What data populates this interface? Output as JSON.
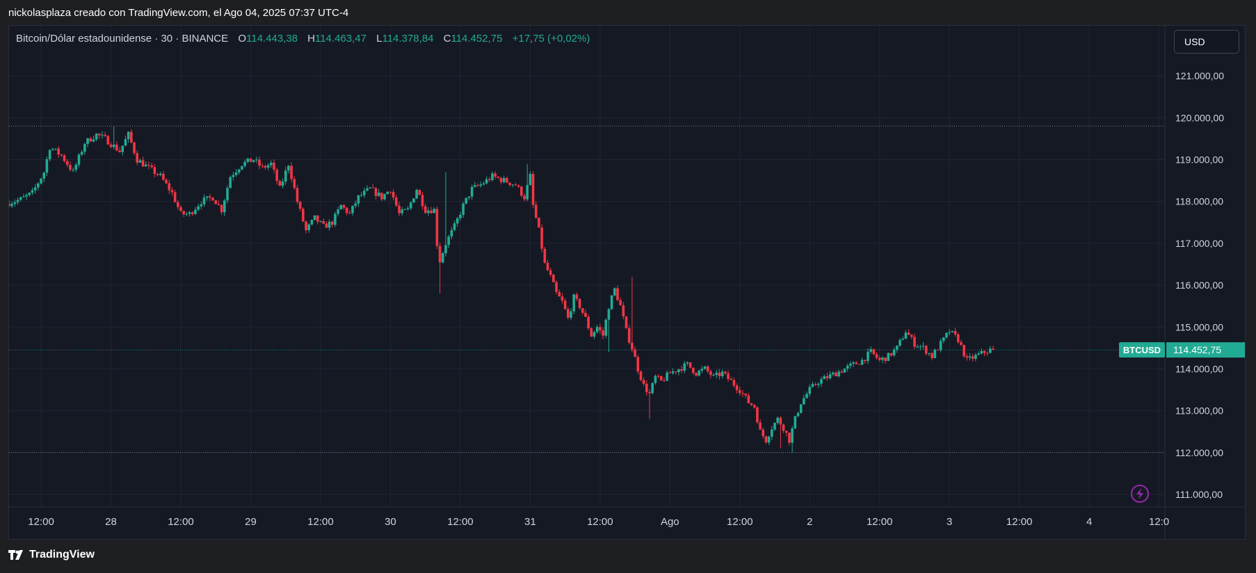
{
  "caption": "nickolasplaza creado con TradingView.com, el Ago 04, 2025 07:37 UTC-4",
  "legend": {
    "symbol": "Bitcoin/Dólar estadounidense · 30 · BINANCE",
    "o_label": "O",
    "o_value": "114.443,38",
    "h_label": "H",
    "h_value": "114.463,47",
    "l_label": "L",
    "l_value": "114.378,84",
    "c_label": "C",
    "c_value": "114.452,75",
    "change": "+17,75 (+0,02%)"
  },
  "currency": "USD",
  "footer": {
    "brand": "TradingView"
  },
  "colors": {
    "up": "#22ab94",
    "down": "#f23645",
    "background": "#151924",
    "grid": "#232632",
    "axis_text": "#d1d4dc",
    "lightning": "#9c27b0"
  },
  "icons": [
    "lightning-icon",
    "tradingview-logo-icon"
  ],
  "chart_data": {
    "type": "candlestick",
    "symbol_tag": "BTCUSD",
    "last_price_label": "114.452,75",
    "last_price": 114452.75,
    "ylim": [
      110700,
      122200
    ],
    "y_ticks": [
      {
        "value": 121000,
        "label": "121.000,00"
      },
      {
        "value": 120000,
        "label": "120.000,00"
      },
      {
        "value": 119000,
        "label": "119.000,00"
      },
      {
        "value": 118000,
        "label": "118.000,00"
      },
      {
        "value": 117000,
        "label": "117.000,00"
      },
      {
        "value": 116000,
        "label": "116.000,00"
      },
      {
        "value": 115000,
        "label": "115.000,00"
      },
      {
        "value": 114000,
        "label": "114.000,00"
      },
      {
        "value": 113000,
        "label": "113.000,00"
      },
      {
        "value": 112000,
        "label": "112.000,00"
      },
      {
        "value": 111000,
        "label": "111.000,00"
      }
    ],
    "x_ticks": [
      {
        "t": 12,
        "label": "12:00"
      },
      {
        "t": 24,
        "label": "28"
      },
      {
        "t": 36,
        "label": "12:00"
      },
      {
        "t": 48,
        "label": "29"
      },
      {
        "t": 60,
        "label": "12:00"
      },
      {
        "t": 72,
        "label": "30"
      },
      {
        "t": 84,
        "label": "12:00"
      },
      {
        "t": 96,
        "label": "31"
      },
      {
        "t": 108,
        "label": "12:00"
      },
      {
        "t": 120,
        "label": "Ago"
      },
      {
        "t": 132,
        "label": "12:00"
      },
      {
        "t": 144,
        "label": "2"
      },
      {
        "t": 156,
        "label": "12:00"
      },
      {
        "t": 168,
        "label": "3"
      },
      {
        "t": 180,
        "label": "12:00"
      },
      {
        "t": 192,
        "label": "4"
      },
      {
        "t": 204,
        "label": "12:0"
      }
    ],
    "x_range_hours": [
      6.5,
      205
    ],
    "reference_lines": [
      119800,
      112000
    ],
    "anchors": [
      [
        6.5,
        117950
      ],
      [
        9,
        118050
      ],
      [
        11,
        118200
      ],
      [
        13,
        118700
      ],
      [
        14,
        119300
      ],
      [
        16,
        119100
      ],
      [
        18,
        118700
      ],
      [
        20,
        119400
      ],
      [
        22,
        119600
      ],
      [
        23.5,
        119500
      ],
      [
        26,
        119200
      ],
      [
        27.5,
        119600
      ],
      [
        29,
        119000
      ],
      [
        31,
        118800
      ],
      [
        33,
        118600
      ],
      [
        35,
        118200
      ],
      [
        36.5,
        117700
      ],
      [
        38,
        117700
      ],
      [
        40,
        118000
      ],
      [
        42,
        118100
      ],
      [
        43.5,
        117800
      ],
      [
        45,
        118600
      ],
      [
        47,
        118900
      ],
      [
        49,
        119000
      ],
      [
        50.5,
        118800
      ],
      [
        52,
        118900
      ],
      [
        53.5,
        118300
      ],
      [
        55,
        118900
      ],
      [
        56.5,
        118000
      ],
      [
        58,
        117300
      ],
      [
        59.5,
        117600
      ],
      [
        61,
        117400
      ],
      [
        62.5,
        117500
      ],
      [
        64,
        117900
      ],
      [
        65.5,
        117700
      ],
      [
        67,
        118100
      ],
      [
        69,
        118300
      ],
      [
        71,
        118100
      ],
      [
        72.5,
        118300
      ],
      [
        74,
        117700
      ],
      [
        75.5,
        117800
      ],
      [
        77,
        118300
      ],
      [
        78.5,
        117800
      ],
      [
        80,
        117800
      ],
      [
        80.8,
        116500
      ],
      [
        82,
        117000
      ],
      [
        83.5,
        117400
      ],
      [
        85,
        117900
      ],
      [
        86.5,
        118300
      ],
      [
        88,
        118400
      ],
      [
        90,
        118600
      ],
      [
        92,
        118500
      ],
      [
        94,
        118400
      ],
      [
        95.5,
        118100
      ],
      [
        96.5,
        118600
      ],
      [
        97,
        117900
      ],
      [
        98,
        117300
      ],
      [
        99,
        116500
      ],
      [
        100,
        116200
      ],
      [
        101,
        115800
      ],
      [
        102,
        115600
      ],
      [
        103,
        115200
      ],
      [
        104,
        115700
      ],
      [
        105,
        115500
      ],
      [
        106,
        115200
      ],
      [
        107,
        114800
      ],
      [
        108,
        115000
      ],
      [
        109,
        114800
      ],
      [
        110,
        115500
      ],
      [
        111,
        115900
      ],
      [
        112,
        115500
      ],
      [
        113,
        114900
      ],
      [
        114,
        114500
      ],
      [
        115,
        114000
      ],
      [
        116,
        113600
      ],
      [
        117,
        113400
      ],
      [
        118,
        113800
      ],
      [
        119,
        113700
      ],
      [
        120.5,
        113900
      ],
      [
        122,
        114000
      ],
      [
        123.5,
        114100
      ],
      [
        125,
        113900
      ],
      [
        126.5,
        114000
      ],
      [
        128,
        113800
      ],
      [
        129.5,
        113900
      ],
      [
        131,
        113700
      ],
      [
        132.5,
        113500
      ],
      [
        134,
        113200
      ],
      [
        135,
        113100
      ],
      [
        136,
        112500
      ],
      [
        137,
        112300
      ],
      [
        138,
        112600
      ],
      [
        139,
        112800
      ],
      [
        140,
        112600
      ],
      [
        141,
        112300
      ],
      [
        142,
        112800
      ],
      [
        143,
        113200
      ],
      [
        144.5,
        113500
      ],
      [
        146,
        113700
      ],
      [
        147.5,
        113800
      ],
      [
        149,
        113900
      ],
      [
        150.5,
        114000
      ],
      [
        152,
        114100
      ],
      [
        153.5,
        114200
      ],
      [
        155,
        114400
      ],
      [
        156.5,
        114200
      ],
      [
        158,
        114300
      ],
      [
        159.5,
        114500
      ],
      [
        161,
        114900
      ],
      [
        162.5,
        114600
      ],
      [
        164,
        114500
      ],
      [
        165.5,
        114300
      ],
      [
        167,
        114600
      ],
      [
        168.5,
        114900
      ],
      [
        170,
        114700
      ],
      [
        171.5,
        114200
      ],
      [
        173,
        114300
      ],
      [
        174.5,
        114400
      ],
      [
        175.5,
        114450
      ]
    ],
    "extreme_wicks": [
      {
        "t": 24.5,
        "high": 119800
      },
      {
        "t": 80.5,
        "low": 115800
      },
      {
        "t": 81.5,
        "high": 118700
      },
      {
        "t": 109.5,
        "low": 114400
      },
      {
        "t": 113.5,
        "high": 116200
      },
      {
        "t": 116.5,
        "low": 112800
      },
      {
        "t": 139.2,
        "low": 112100
      },
      {
        "t": 141.2,
        "low": 112000
      },
      {
        "t": 95.5,
        "high": 118900
      }
    ]
  }
}
